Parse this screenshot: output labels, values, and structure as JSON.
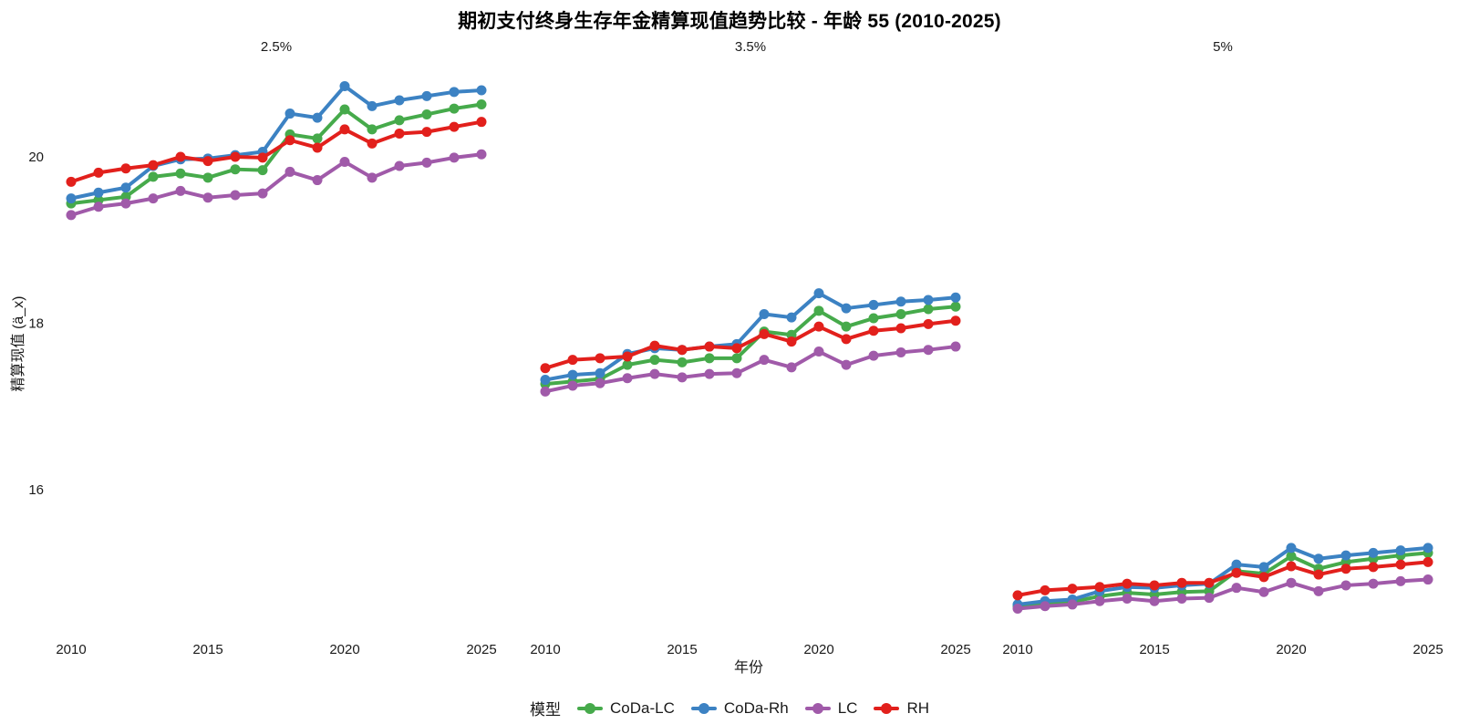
{
  "title": "期初支付终身生存年金精算现值趋势比较 - 年龄 55 (2010-2025)",
  "chart_data": {
    "type": "line",
    "title": "期初支付终身生存年金精算现值趋势比较 - 年龄 55 (2010-2025)",
    "xlabel": "年份",
    "ylabel": "精算现值 (ä_x)",
    "legend_title": "模型",
    "legend_position": "bottom",
    "grid": "off",
    "x": [
      2010,
      2011,
      2012,
      2013,
      2014,
      2015,
      2016,
      2017,
      2018,
      2019,
      2020,
      2021,
      2022,
      2023,
      2024,
      2025
    ],
    "x_ticks": [
      2010,
      2015,
      2020,
      2025
    ],
    "y_ticks": [
      20,
      18,
      16
    ],
    "ylim": [
      14.4,
      21.1
    ],
    "facets": [
      {
        "label": "2.5%",
        "series": [
          {
            "name": "CoDa-LC",
            "color": "#46AA4B",
            "values": [
              19.44,
              19.48,
              19.52,
              19.76,
              19.8,
              19.75,
              19.85,
              19.84,
              20.27,
              20.22,
              20.57,
              20.33,
              20.44,
              20.51,
              20.58,
              20.63
            ]
          },
          {
            "name": "CoDa-Rh",
            "color": "#3C82C3",
            "values": [
              19.5,
              19.57,
              19.63,
              19.89,
              19.97,
              19.98,
              20.02,
              20.06,
              20.52,
              20.47,
              20.85,
              20.61,
              20.68,
              20.73,
              20.78,
              20.8
            ]
          },
          {
            "name": "LC",
            "color": "#A05AA9",
            "values": [
              19.3,
              19.4,
              19.44,
              19.5,
              19.59,
              19.51,
              19.54,
              19.56,
              19.82,
              19.72,
              19.94,
              19.75,
              19.89,
              19.93,
              19.99,
              20.03
            ]
          },
          {
            "name": "RH",
            "color": "#E2201C",
            "values": [
              19.7,
              19.81,
              19.86,
              19.9,
              20.0,
              19.95,
              20.0,
              19.99,
              20.2,
              20.11,
              20.33,
              20.16,
              20.28,
              20.3,
              20.36,
              20.42
            ]
          }
        ]
      },
      {
        "label": "3.5%",
        "series": [
          {
            "name": "CoDa-LC",
            "color": "#46AA4B",
            "values": [
              17.27,
              17.3,
              17.33,
              17.5,
              17.56,
              17.53,
              17.58,
              17.58,
              17.9,
              17.86,
              18.15,
              17.96,
              18.06,
              18.11,
              18.17,
              18.2
            ]
          },
          {
            "name": "CoDa-Rh",
            "color": "#3C82C3",
            "values": [
              17.32,
              17.38,
              17.4,
              17.63,
              17.7,
              17.68,
              17.72,
              17.75,
              18.11,
              18.07,
              18.36,
              18.18,
              18.22,
              18.26,
              18.28,
              18.31
            ]
          },
          {
            "name": "LC",
            "color": "#A05AA9",
            "values": [
              17.18,
              17.25,
              17.28,
              17.34,
              17.39,
              17.35,
              17.39,
              17.4,
              17.56,
              17.47,
              17.66,
              17.5,
              17.61,
              17.65,
              17.68,
              17.72
            ]
          },
          {
            "name": "RH",
            "color": "#E2201C",
            "values": [
              17.46,
              17.56,
              17.58,
              17.6,
              17.73,
              17.68,
              17.72,
              17.7,
              17.87,
              17.78,
              17.96,
              17.81,
              17.91,
              17.94,
              17.99,
              18.03
            ]
          }
        ]
      },
      {
        "label": "5%",
        "series": [
          {
            "name": "CoDa-LC",
            "color": "#46AA4B",
            "values": [
              14.6,
              14.63,
              14.65,
              14.72,
              14.76,
              14.74,
              14.77,
              14.78,
              15.02,
              14.99,
              15.2,
              15.05,
              15.13,
              15.17,
              15.21,
              15.24
            ]
          },
          {
            "name": "CoDa-Rh",
            "color": "#3C82C3",
            "values": [
              14.62,
              14.66,
              14.68,
              14.78,
              14.83,
              14.82,
              14.85,
              14.87,
              15.1,
              15.07,
              15.3,
              15.17,
              15.21,
              15.24,
              15.27,
              15.3
            ]
          },
          {
            "name": "LC",
            "color": "#A05AA9",
            "values": [
              14.57,
              14.6,
              14.62,
              14.66,
              14.69,
              14.66,
              14.69,
              14.7,
              14.82,
              14.77,
              14.88,
              14.78,
              14.85,
              14.87,
              14.9,
              14.92
            ]
          },
          {
            "name": "RH",
            "color": "#E2201C",
            "values": [
              14.73,
              14.79,
              14.81,
              14.83,
              14.87,
              14.85,
              14.88,
              14.88,
              15.0,
              14.95,
              15.08,
              14.98,
              15.05,
              15.07,
              15.1,
              15.13
            ]
          }
        ]
      }
    ]
  }
}
